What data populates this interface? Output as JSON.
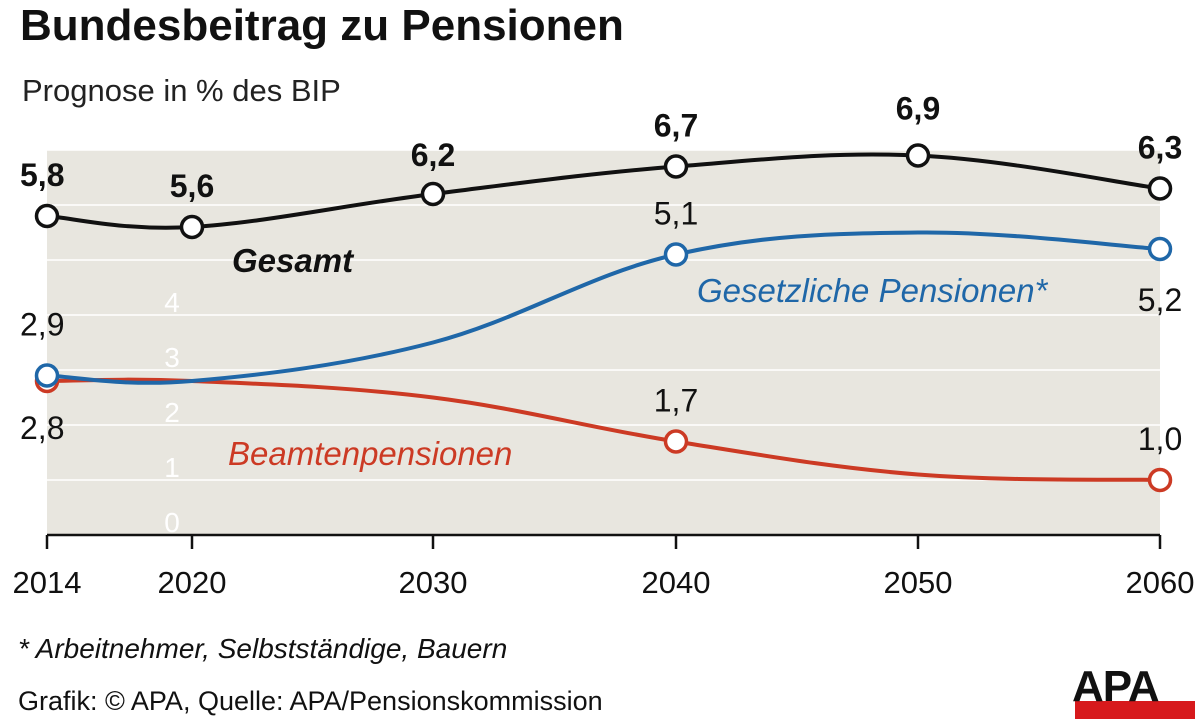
{
  "title": "Bundesbeitrag zu Pensionen",
  "subtitle": "Prognose in % des BIP",
  "footnote": "* Arbeitnehmer, Selbstständige, Bauern",
  "source": "Grafik: © APA, Quelle: APA/Pensionskommission",
  "logo": "APA",
  "colors": {
    "plot_bg": "#e8e6df",
    "gesamt": "#111111",
    "gesetzliche": "#1f67a8",
    "beamten": "#cc3a24",
    "logo_red": "#d7191c"
  },
  "chart_data": {
    "type": "line",
    "x": [
      2014,
      2020,
      2030,
      2040,
      2050,
      2060
    ],
    "x_tick_labels": [
      "2014",
      "2020",
      "2030",
      "2040",
      "2050",
      "2060"
    ],
    "y_tick_labels": [
      "0",
      "1",
      "2",
      "3",
      "4"
    ],
    "ylim": [
      0,
      7.4
    ],
    "grid": true,
    "series": [
      {
        "name": "Gesamt",
        "key": "gesamt",
        "values": [
          5.8,
          5.6,
          6.2,
          6.7,
          6.9,
          6.3
        ],
        "labels": [
          "5,8",
          "5,6",
          "6,2",
          "6,7",
          "6,9",
          "6,3"
        ]
      },
      {
        "name": "Gesetzliche Pensionen*",
        "key": "gesetzliche",
        "values": [
          2.9,
          2.8,
          3.5,
          5.1,
          5.5,
          5.2
        ],
        "labels": [
          "2,9",
          "",
          "",
          "5,1",
          "",
          "5,2"
        ]
      },
      {
        "name": "Beamtenpensionen",
        "key": "beamten",
        "values": [
          2.8,
          2.8,
          2.5,
          1.7,
          1.1,
          1.0
        ],
        "labels": [
          "2,8",
          "",
          "",
          "1,7",
          "",
          "1,0"
        ]
      }
    ]
  }
}
